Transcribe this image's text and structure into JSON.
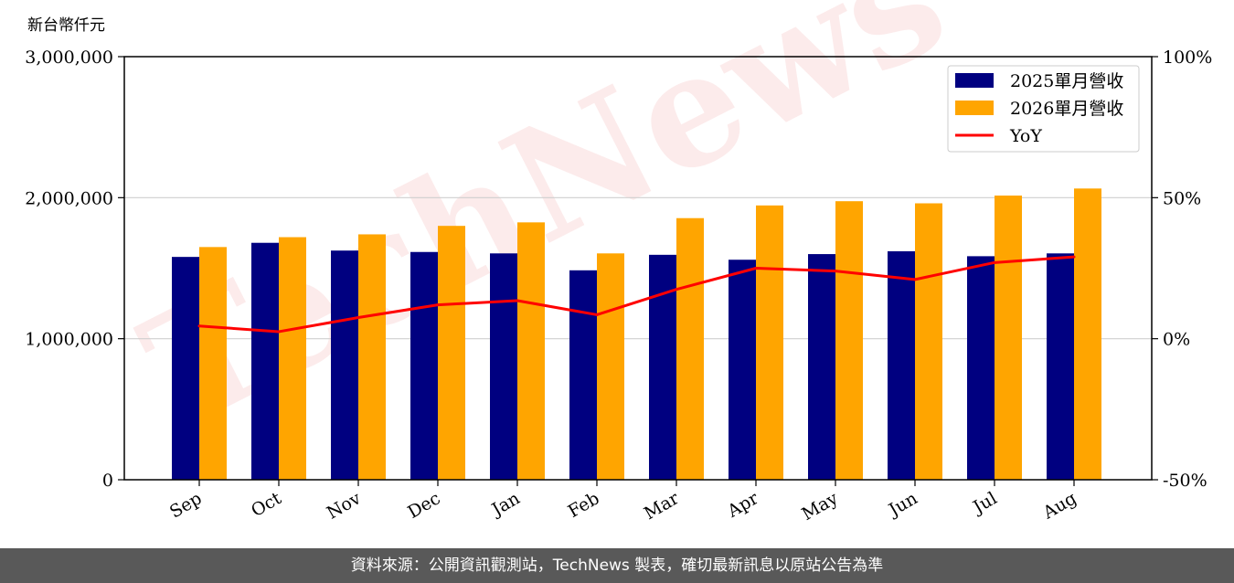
{
  "chart_data": {
    "type": "bar",
    "unit_label": "新台幣仟元",
    "categories": [
      "Sep",
      "Oct",
      "Nov",
      "Dec",
      "Jan",
      "Feb",
      "Mar",
      "Apr",
      "May",
      "Jun",
      "Jul",
      "Aug"
    ],
    "series": [
      {
        "name": "2025單月營收",
        "type": "bar",
        "color": "#000080",
        "values": [
          1580000,
          1680000,
          1625000,
          1615000,
          1605000,
          1485000,
          1595000,
          1560000,
          1600000,
          1620000,
          1585000,
          1605000
        ]
      },
      {
        "name": "2026單月營收",
        "type": "bar",
        "color": "#FFA500",
        "values": [
          1650000,
          1720000,
          1740000,
          1800000,
          1825000,
          1605000,
          1855000,
          1945000,
          1975000,
          1960000,
          2015000,
          2065000
        ]
      },
      {
        "name": "YoY",
        "type": "line",
        "axis": "right",
        "color": "#FF0000",
        "values": [
          4.5,
          2.5,
          7.5,
          12,
          13.5,
          8.5,
          17.5,
          25,
          24,
          21,
          27,
          29
        ]
      }
    ],
    "y_left": {
      "min": 0,
      "max": 3000000,
      "ticks": [
        0,
        1000000,
        2000000,
        3000000
      ],
      "tick_labels": [
        "0",
        "1,000,000",
        "2,000,000",
        "3,000,000"
      ]
    },
    "y_right": {
      "min": -50,
      "max": 100,
      "ticks": [
        -50,
        0,
        50,
        100
      ],
      "tick_labels": [
        "-50%",
        "0%",
        "50%",
        "100%"
      ]
    },
    "grid": true,
    "legend_position": "top-right",
    "watermark": "TechNews"
  },
  "footer": {
    "text": "資料來源：公開資訊觀測站，TechNews 製表，確切最新訊息以原站公告為準"
  }
}
